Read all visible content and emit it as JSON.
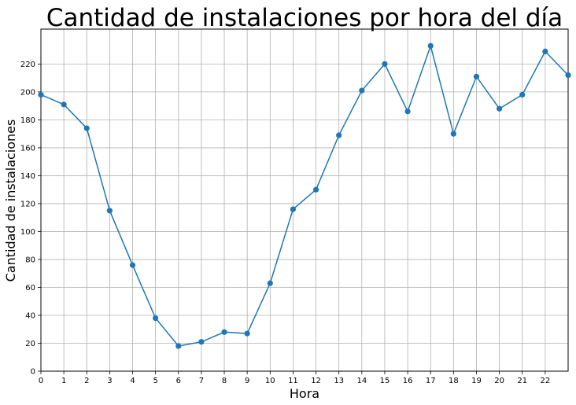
{
  "chart_data": {
    "type": "line",
    "title": "Cantidad de instalaciones por hora del día",
    "xlabel": "Hora",
    "ylabel": "Cantidad de instalaciones",
    "x": [
      0,
      1,
      2,
      3,
      4,
      5,
      6,
      7,
      8,
      9,
      10,
      11,
      12,
      13,
      14,
      15,
      16,
      17,
      18,
      19,
      20,
      21,
      22,
      23
    ],
    "xticks": [
      "0",
      "1",
      "2",
      "3",
      "4",
      "5",
      "6",
      "7",
      "8",
      "9",
      "10",
      "11",
      "12",
      "13",
      "14",
      "15",
      "16",
      "17",
      "18",
      "19",
      "20",
      "21",
      "22"
    ],
    "yticks": [
      "0",
      "20",
      "40",
      "60",
      "80",
      "100",
      "120",
      "140",
      "160",
      "180",
      "200",
      "220"
    ],
    "values": [
      198,
      191,
      174,
      115,
      76,
      38,
      18,
      21,
      28,
      27,
      63,
      116,
      130,
      169,
      201,
      220,
      186,
      233,
      170,
      211,
      188,
      198,
      229,
      212
    ],
    "xlim": [
      0,
      23
    ],
    "ylim": [
      0,
      245
    ],
    "grid": true,
    "marker": "circle",
    "color": "#1f77b4"
  }
}
